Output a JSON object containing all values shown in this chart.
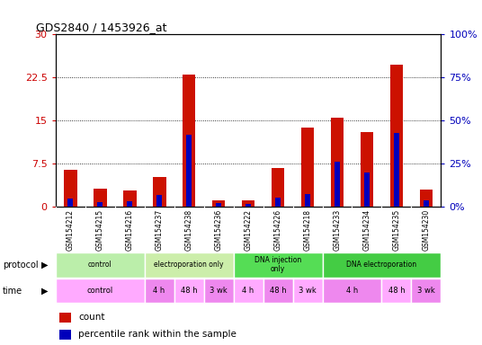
{
  "title": "GDS2840 / 1453926_at",
  "samples": [
    "GSM154212",
    "GSM154215",
    "GSM154216",
    "GSM154237",
    "GSM154238",
    "GSM154236",
    "GSM154222",
    "GSM154226",
    "GSM154218",
    "GSM154233",
    "GSM154234",
    "GSM154235",
    "GSM154230"
  ],
  "count_values": [
    6.5,
    3.2,
    2.8,
    5.2,
    23.0,
    1.2,
    1.2,
    6.8,
    13.8,
    15.5,
    13.0,
    24.8,
    3.0
  ],
  "percentile_values": [
    5.0,
    3.0,
    3.5,
    7.0,
    42.0,
    2.5,
    2.0,
    5.5,
    7.5,
    26.0,
    20.0,
    43.0,
    4.0
  ],
  "ylim_left": [
    0,
    30
  ],
  "ylim_right": [
    0,
    100
  ],
  "yticks_left": [
    0,
    7.5,
    15,
    22.5,
    30
  ],
  "yticks_right": [
    0,
    25,
    50,
    75,
    100
  ],
  "ytick_labels_left": [
    "0",
    "7.5",
    "15",
    "22.5",
    "30"
  ],
  "ytick_labels_right": [
    "0%",
    "25%",
    "50%",
    "75%",
    "100%"
  ],
  "bar_color_red": "#cc1100",
  "bar_color_blue": "#0000bb",
  "red_bar_width": 0.45,
  "blue_bar_width": 0.18,
  "protocol_groups": [
    {
      "label": "control",
      "start": 0,
      "end": 3,
      "color": "#bbeeaa"
    },
    {
      "label": "electroporation only",
      "start": 3,
      "end": 6,
      "color": "#cceeaa"
    },
    {
      "label": "DNA injection\nonly",
      "start": 6,
      "end": 9,
      "color": "#55dd55"
    },
    {
      "label": "DNA electroporation",
      "start": 9,
      "end": 13,
      "color": "#44cc44"
    }
  ],
  "time_groups": [
    {
      "label": "control",
      "start": 0,
      "end": 3,
      "color": "#ffaaff"
    },
    {
      "label": "4 h",
      "start": 3,
      "end": 4,
      "color": "#ee88ee"
    },
    {
      "label": "48 h",
      "start": 4,
      "end": 5,
      "color": "#ffaaff"
    },
    {
      "label": "3 wk",
      "start": 5,
      "end": 6,
      "color": "#ee88ee"
    },
    {
      "label": "4 h",
      "start": 6,
      "end": 7,
      "color": "#ffaaff"
    },
    {
      "label": "48 h",
      "start": 7,
      "end": 8,
      "color": "#ee88ee"
    },
    {
      "label": "3 wk",
      "start": 8,
      "end": 9,
      "color": "#ffaaff"
    },
    {
      "label": "4 h",
      "start": 9,
      "end": 11,
      "color": "#ee88ee"
    },
    {
      "label": "48 h",
      "start": 11,
      "end": 12,
      "color": "#ffaaff"
    },
    {
      "label": "3 wk",
      "start": 12,
      "end": 13,
      "color": "#ee88ee"
    }
  ],
  "sample_bg_color": "#cccccc",
  "bg_color": "#ffffff",
  "tick_color_left": "#cc0000",
  "tick_color_right": "#0000bb",
  "label_left": "protocol",
  "label_time": "time",
  "legend_count": "count",
  "legend_pct": "percentile rank within the sample"
}
